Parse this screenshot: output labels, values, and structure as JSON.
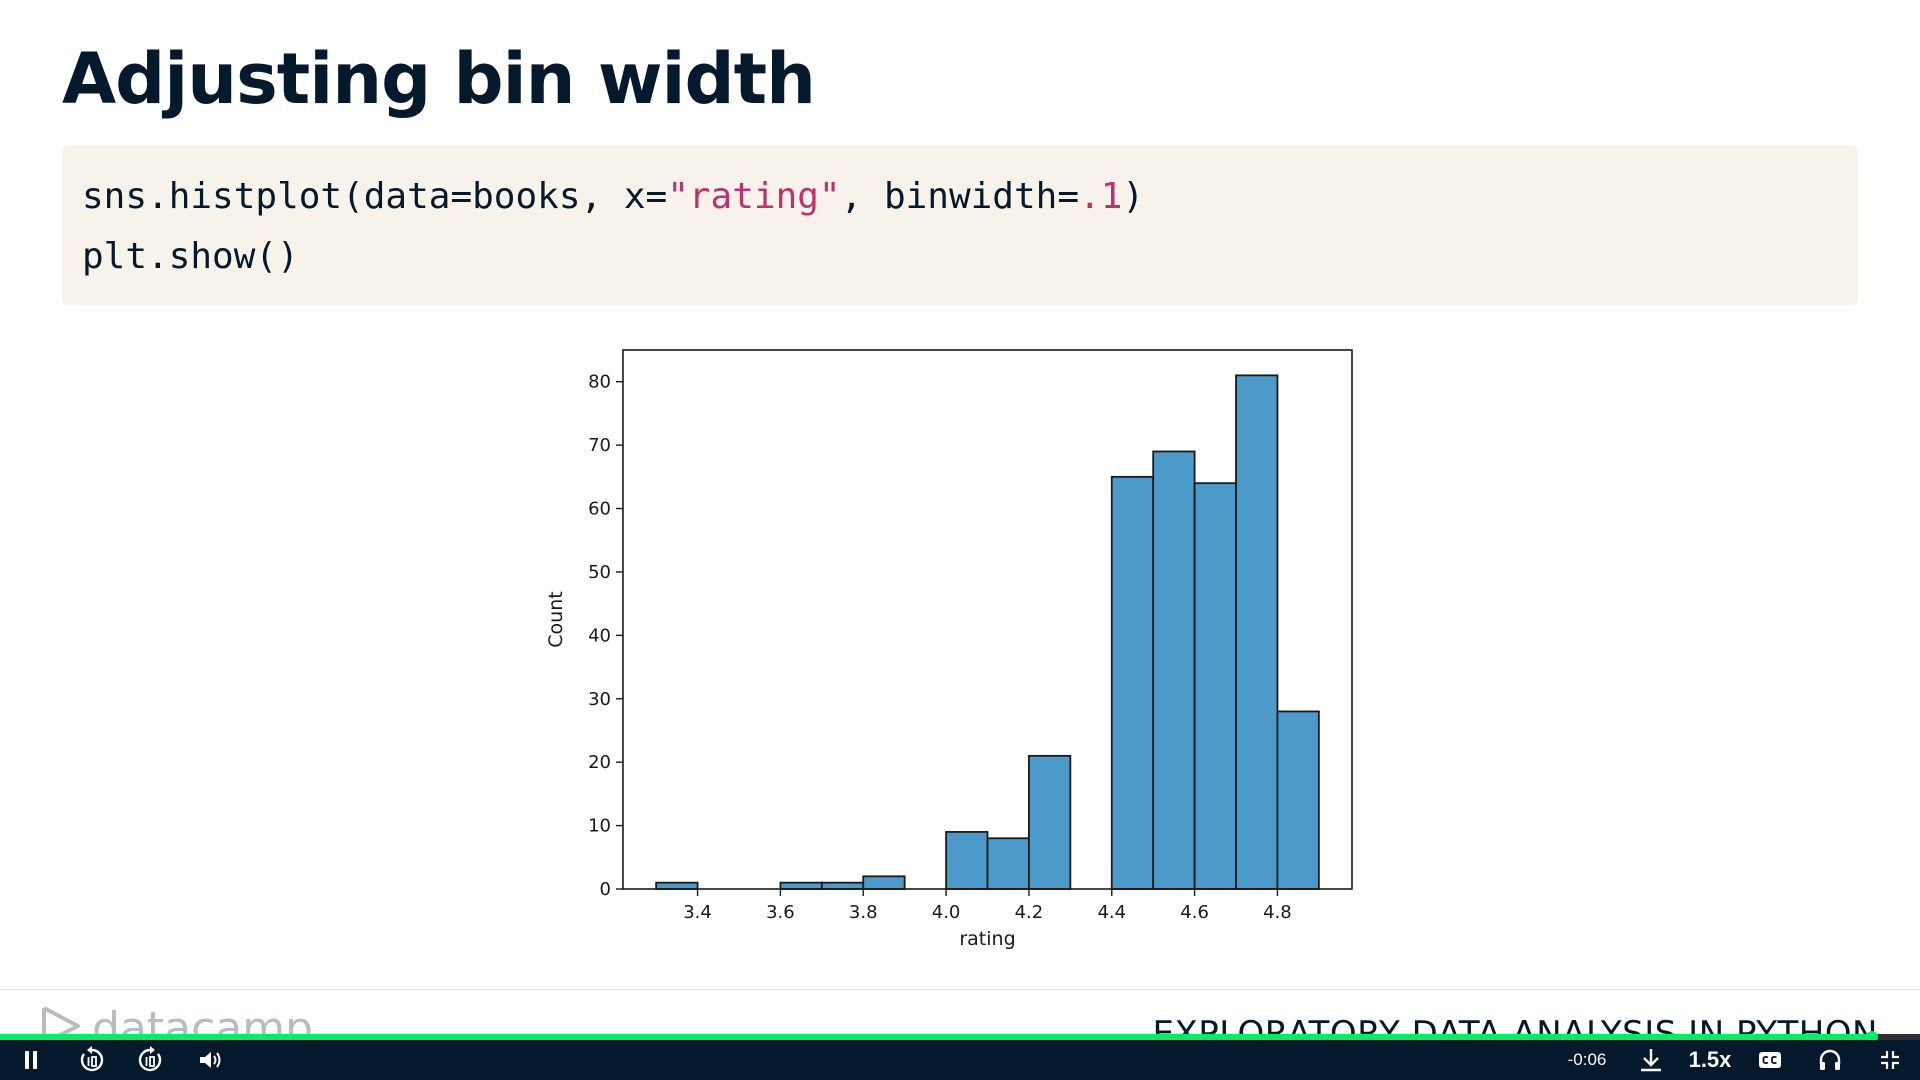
{
  "slide": {
    "title": "Adjusting bin width"
  },
  "code": {
    "line1": {
      "prefix": "sns.histplot(data=books, x=",
      "string": "\"rating\"",
      "middle": ", binwidth=",
      "number": ".1",
      "suffix": ")"
    },
    "line2": "plt.show()"
  },
  "chart_data": {
    "type": "bar",
    "subtype": "histogram",
    "xlabel": "rating",
    "ylabel": "Count",
    "xlim": [
      3.22,
      4.98
    ],
    "ylim": [
      0,
      85
    ],
    "xticks": [
      "3.4",
      "3.6",
      "3.8",
      "4.0",
      "4.2",
      "4.4",
      "4.6",
      "4.8"
    ],
    "yticks": [
      "0",
      "10",
      "20",
      "30",
      "40",
      "50",
      "60",
      "70",
      "80"
    ],
    "bin_width": 0.1,
    "bins": [
      {
        "start": 3.3,
        "end": 3.4,
        "count": 1
      },
      {
        "start": 3.4,
        "end": 3.5,
        "count": 0
      },
      {
        "start": 3.5,
        "end": 3.6,
        "count": 0
      },
      {
        "start": 3.6,
        "end": 3.7,
        "count": 1
      },
      {
        "start": 3.7,
        "end": 3.8,
        "count": 1
      },
      {
        "start": 3.8,
        "end": 3.9,
        "count": 2
      },
      {
        "start": 3.9,
        "end": 4.0,
        "count": 0
      },
      {
        "start": 4.0,
        "end": 4.1,
        "count": 9
      },
      {
        "start": 4.1,
        "end": 4.2,
        "count": 8
      },
      {
        "start": 4.2,
        "end": 4.3,
        "count": 21
      },
      {
        "start": 4.3,
        "end": 4.4,
        "count": 0
      },
      {
        "start": 4.4,
        "end": 4.5,
        "count": 65
      },
      {
        "start": 4.5,
        "end": 4.6,
        "count": 69
      },
      {
        "start": 4.6,
        "end": 4.7,
        "count": 64
      },
      {
        "start": 4.7,
        "end": 4.8,
        "count": 81
      },
      {
        "start": 4.8,
        "end": 4.9,
        "count": 28
      }
    ],
    "bar_color": "#4c9ac9",
    "edge_color": "#1a1a1a",
    "grid": false,
    "legend": "none"
  },
  "footer": {
    "brand": "datacamp",
    "course": "EXPLORATORY DATA ANALYSIS IN PYTHON"
  },
  "player": {
    "time_remaining": "-0:06",
    "speed": "1.5x",
    "progress_fraction": 0.975,
    "accent_color": "#03ef62"
  }
}
